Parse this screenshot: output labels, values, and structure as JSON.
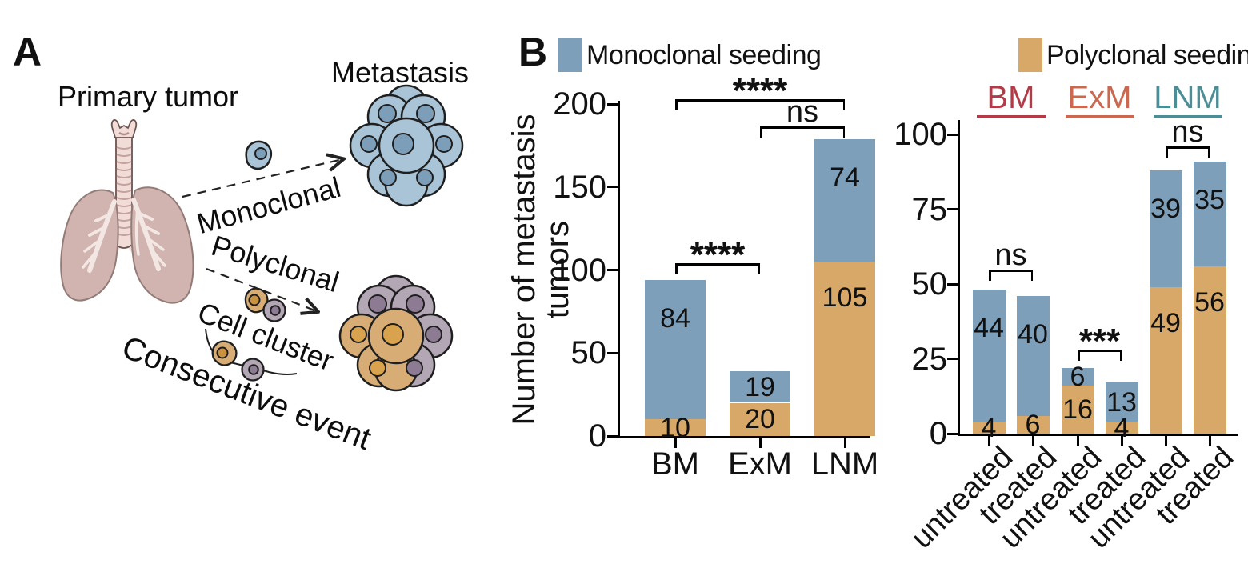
{
  "panel_a": {
    "label": "A",
    "primary_tumor_label": "Primary tumor",
    "metastasis_label": "Metastasis",
    "monoclonal_label": "Monoclonal",
    "polyclonal_label": "Polyclonal",
    "cell_cluster_label": "Cell cluster",
    "consecutive_event_label": "Consecutive event",
    "colors": {
      "lung_fill": "#d1b4b0",
      "trachea_fill": "#f2dcd8",
      "blue_cell_fill": "#a9c4d6",
      "blue_cell_nucleus": "#7d9eb8",
      "tan_cell_fill": "#d7ad75",
      "tan_cell_nucleus": "#d9a24c",
      "purple_cell_fill": "#b4a7b5",
      "purple_cell_nucleus": "#8d7b94"
    }
  },
  "panel_b": {
    "label": "B",
    "legend": [
      {
        "label": "Monoclonal seeding",
        "color": "#7e9fba"
      },
      {
        "label": "Polyclonal seeding",
        "color": "#d7a868"
      }
    ]
  },
  "chart_data": [
    {
      "type": "bar",
      "stacked": true,
      "categories": [
        "BM",
        "ExM",
        "LNM"
      ],
      "series": [
        {
          "name": "Polyclonal seeding",
          "color": "#d7a868",
          "values": [
            10,
            20,
            105
          ]
        },
        {
          "name": "Monoclonal seeding",
          "color": "#7e9fba",
          "values": [
            84,
            19,
            74
          ]
        }
      ],
      "totals": [
        94,
        39,
        179
      ],
      "ylabel": "Number of metastasis tumors",
      "ylabel_lines": [
        "Number of metastasis",
        "tumors"
      ],
      "yticks": [
        0,
        50,
        100,
        150,
        200
      ],
      "ylim": [
        0,
        200
      ],
      "grid": false,
      "significance": [
        {
          "between": [
            0,
            2
          ],
          "label": "****"
        },
        {
          "between": [
            1,
            2
          ],
          "label": "ns"
        },
        {
          "between": [
            0,
            1
          ],
          "label": "****"
        }
      ]
    },
    {
      "type": "bar",
      "stacked": true,
      "categories": [
        "untreated",
        "treated",
        "untreated",
        "treated",
        "untreated",
        "treated"
      ],
      "groups": [
        {
          "label": "BM",
          "color": "#b23b47",
          "bars": [
            0,
            1
          ]
        },
        {
          "label": "ExM",
          "color": "#ca6850",
          "bars": [
            2,
            3
          ]
        },
        {
          "label": "LNM",
          "color": "#4d8d95",
          "bars": [
            4,
            5
          ]
        }
      ],
      "series": [
        {
          "name": "Polyclonal seeding",
          "color": "#d7a868",
          "values": [
            4,
            6,
            16,
            4,
            49,
            56
          ]
        },
        {
          "name": "Monoclonal seeding",
          "color": "#7e9fba",
          "values": [
            44,
            40,
            6,
            13,
            39,
            35
          ]
        }
      ],
      "totals": [
        48,
        46,
        22,
        17,
        88,
        91
      ],
      "yticks": [
        0,
        25,
        50,
        75,
        100
      ],
      "ylim": [
        0,
        110
      ],
      "grid": false,
      "significance": [
        {
          "between": [
            0,
            1
          ],
          "label": "ns"
        },
        {
          "between": [
            2,
            3
          ],
          "label": "***"
        },
        {
          "between": [
            4,
            5
          ],
          "label": "ns"
        }
      ]
    }
  ]
}
